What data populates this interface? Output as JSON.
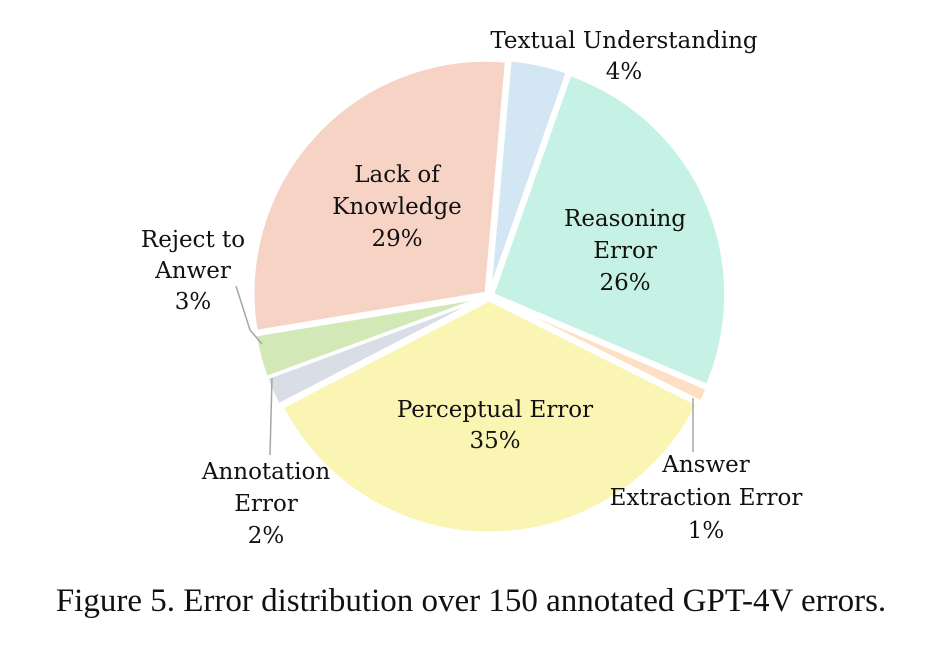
{
  "chart_data": {
    "type": "pie",
    "categories": [
      "Textual Understanding",
      "Reasoning Error",
      "Answer Extraction Error",
      "Perceptual Error",
      "Annotation Error",
      "Reject to Anwer",
      "Lack of Knowledge"
    ],
    "values": [
      4,
      26,
      1,
      35,
      2,
      3,
      29
    ],
    "colors": [
      "#d3e6f4",
      "#c6f2e5",
      "#fde0c4",
      "#fbf5b4",
      "#d8dde6",
      "#d3e8b7",
      "#f7d3c5"
    ],
    "labels": [
      {
        "lines": [
          "Textual Understanding",
          "4%"
        ]
      },
      {
        "lines": [
          "Reasoning",
          "Error",
          "26%"
        ]
      },
      {
        "lines": [
          "Answer",
          "Extraction Error",
          "1%"
        ]
      },
      {
        "lines": [
          "Perceptual Error",
          "35%"
        ]
      },
      {
        "lines": [
          "Annotation",
          "Error",
          "2%"
        ]
      },
      {
        "lines": [
          "Reject to",
          "Anwer",
          "3%"
        ]
      },
      {
        "lines": [
          "Lack of",
          "Knowledge",
          "29%"
        ]
      }
    ]
  },
  "caption": "Figure 5. Error distribution over 150 annotated GPT-4V errors."
}
